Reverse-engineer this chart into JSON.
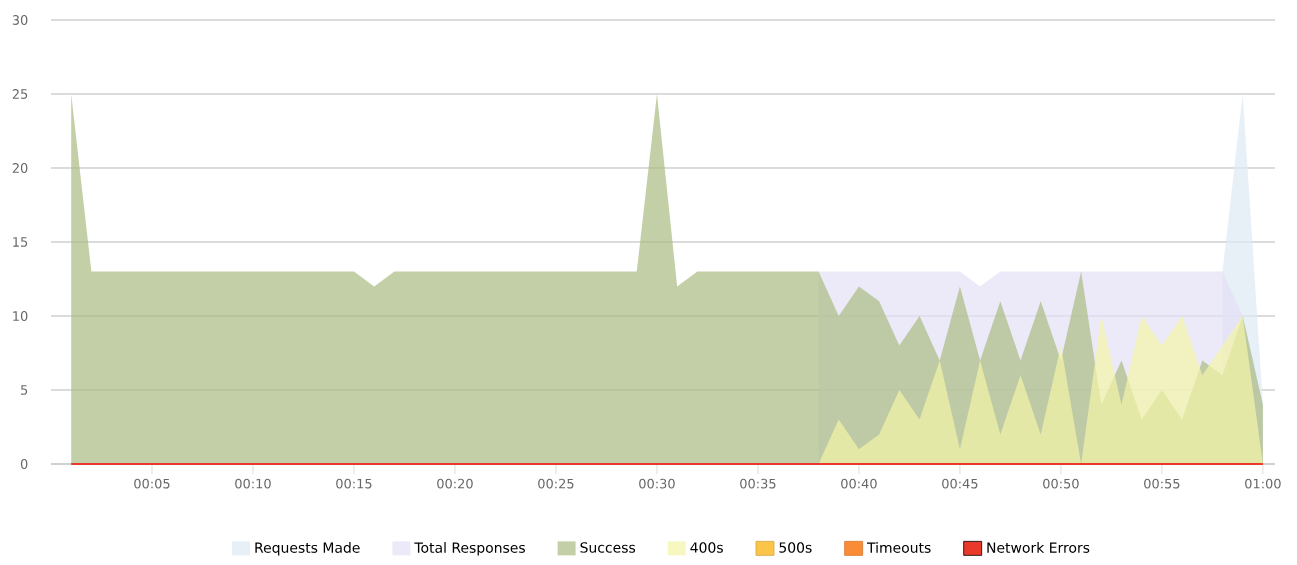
{
  "chart_data": {
    "type": "area",
    "x": [
      1,
      2,
      3,
      4,
      5,
      6,
      7,
      8,
      9,
      10,
      11,
      12,
      13,
      14,
      15,
      16,
      17,
      18,
      19,
      20,
      21,
      22,
      23,
      24,
      25,
      26,
      27,
      28,
      29,
      30,
      31,
      32,
      33,
      34,
      35,
      36,
      37,
      38,
      39,
      40,
      41,
      42,
      43,
      44,
      45,
      46,
      47,
      48,
      49,
      50,
      51,
      52,
      53,
      54,
      55,
      56,
      57,
      58,
      59,
      60
    ],
    "series": [
      {
        "name": "Requests Made",
        "color": "#dde8f3",
        "values": [
          null,
          null,
          null,
          null,
          null,
          null,
          null,
          null,
          null,
          null,
          null,
          null,
          null,
          null,
          null,
          null,
          null,
          null,
          null,
          null,
          null,
          null,
          null,
          null,
          null,
          null,
          null,
          null,
          null,
          null,
          null,
          null,
          null,
          null,
          null,
          null,
          null,
          null,
          null,
          null,
          null,
          null,
          null,
          null,
          null,
          null,
          null,
          null,
          null,
          null,
          null,
          null,
          null,
          null,
          null,
          null,
          null,
          13,
          25,
          4
        ]
      },
      {
        "name": "Total Responses",
        "color": "#e4e0f5",
        "values": [
          null,
          null,
          null,
          null,
          null,
          null,
          null,
          null,
          null,
          null,
          null,
          null,
          null,
          null,
          null,
          null,
          null,
          null,
          null,
          null,
          null,
          null,
          null,
          null,
          null,
          null,
          null,
          null,
          null,
          null,
          null,
          null,
          null,
          null,
          null,
          null,
          null,
          13,
          13,
          13,
          13,
          13,
          13,
          13,
          13,
          12,
          13,
          13,
          13,
          13,
          13,
          13,
          13,
          13,
          13,
          13,
          13,
          13,
          10,
          4
        ]
      },
      {
        "name": "Success",
        "color": "#a9bc82",
        "values": [
          25,
          13,
          13,
          13,
          13,
          13,
          13,
          13,
          13,
          13,
          13,
          13,
          13,
          13,
          13,
          12,
          13,
          13,
          13,
          13,
          13,
          13,
          13,
          13,
          13,
          13,
          13,
          13,
          13,
          25,
          12,
          13,
          13,
          13,
          13,
          13,
          13,
          13,
          10,
          12,
          11,
          8,
          10,
          7,
          12,
          7,
          11,
          7,
          11,
          7,
          13,
          4,
          7,
          3,
          5,
          3,
          7,
          6,
          10,
          4
        ]
      },
      {
        "name": "400s",
        "color": "#f3f5a6",
        "values": [
          null,
          null,
          null,
          null,
          null,
          null,
          null,
          null,
          null,
          null,
          null,
          null,
          null,
          null,
          null,
          null,
          null,
          null,
          null,
          null,
          null,
          null,
          null,
          null,
          null,
          null,
          null,
          null,
          null,
          null,
          null,
          null,
          null,
          null,
          null,
          null,
          null,
          0,
          3,
          1,
          2,
          5,
          3,
          7,
          1,
          7,
          2,
          6,
          2,
          8,
          0,
          10,
          4,
          10,
          8,
          10,
          6,
          8,
          10,
          0
        ]
      },
      {
        "name": "500s",
        "color": "#fbc54a",
        "values": [
          null,
          null,
          null,
          null,
          null,
          null,
          null,
          null,
          null,
          null,
          null,
          null,
          null,
          null,
          null,
          null,
          null,
          null,
          null,
          null,
          null,
          null,
          null,
          null,
          null,
          null,
          null,
          null,
          null,
          null,
          null,
          null,
          null,
          null,
          null,
          null,
          null,
          null,
          null,
          null,
          null,
          null,
          null,
          null,
          null,
          null,
          null,
          null,
          null,
          null,
          null,
          null,
          null,
          null,
          null,
          null,
          null,
          null,
          null,
          null
        ]
      },
      {
        "name": "Timeouts",
        "color": "#fb8c36",
        "values": [
          null,
          null,
          null,
          null,
          null,
          null,
          null,
          null,
          null,
          null,
          null,
          null,
          null,
          null,
          null,
          null,
          null,
          null,
          null,
          null,
          null,
          null,
          null,
          null,
          null,
          null,
          null,
          null,
          null,
          null,
          null,
          null,
          null,
          null,
          null,
          null,
          null,
          null,
          null,
          null,
          null,
          null,
          null,
          null,
          null,
          null,
          null,
          null,
          null,
          null,
          null,
          null,
          null,
          null,
          null,
          null,
          null,
          null,
          null,
          null
        ]
      },
      {
        "name": "Network Errors",
        "type": "line",
        "color": "#e8392a",
        "values": [
          0,
          0,
          0,
          0,
          0,
          0,
          0,
          0,
          0,
          0,
          0,
          0,
          0,
          0,
          0,
          0,
          0,
          0,
          0,
          0,
          0,
          0,
          0,
          0,
          0,
          0,
          0,
          0,
          0,
          0,
          0,
          0,
          0,
          0,
          0,
          0,
          0,
          0,
          0,
          0,
          0,
          0,
          0,
          0,
          0,
          0,
          0,
          0,
          0,
          0,
          0,
          0,
          0,
          0,
          0,
          0,
          0,
          0,
          0,
          0
        ]
      }
    ],
    "xlim": [
      0,
      60.6
    ],
    "xticks": [
      {
        "value": 5,
        "label": "00:05"
      },
      {
        "value": 10,
        "label": "00:10"
      },
      {
        "value": 15,
        "label": "00:15"
      },
      {
        "value": 20,
        "label": "00:20"
      },
      {
        "value": 25,
        "label": "00:25"
      },
      {
        "value": 30,
        "label": "00:30"
      },
      {
        "value": 35,
        "label": "00:35"
      },
      {
        "value": 40,
        "label": "00:40"
      },
      {
        "value": 45,
        "label": "00:45"
      },
      {
        "value": 50,
        "label": "00:50"
      },
      {
        "value": 55,
        "label": "00:55"
      },
      {
        "value": 60,
        "label": "01:00"
      }
    ],
    "ylim": [
      0,
      30
    ],
    "yticks": [
      0,
      5,
      10,
      15,
      20,
      25,
      30
    ],
    "grid": "y",
    "legend": "bottom"
  }
}
